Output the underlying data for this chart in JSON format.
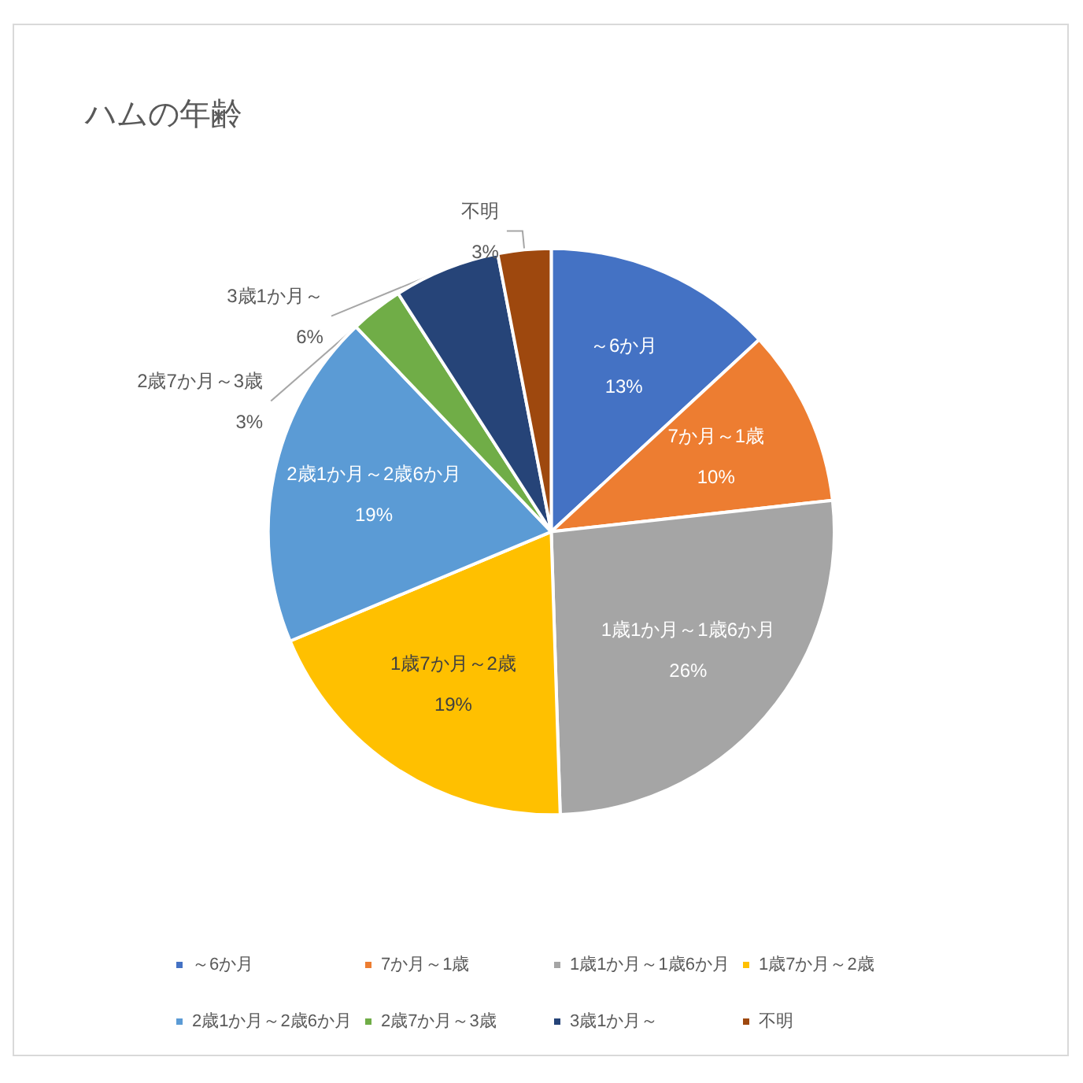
{
  "chart_data": {
    "type": "pie",
    "title": "ハムの年齢",
    "categories": [
      "～6か月",
      "7か月～1歳",
      "1歳1か月～1歳6か月",
      "1歳7か月～2歳",
      "2歳1か月～2歳6か月",
      "2歳7か月～3歳",
      "3歳1か月～",
      "不明"
    ],
    "values": [
      13,
      10,
      26,
      19,
      19,
      3,
      6,
      3
    ],
    "colors": [
      "#4472c4",
      "#ed7d31",
      "#a5a5a5",
      "#ffc000",
      "#5b9bd5",
      "#70ad47",
      "#264478",
      "#9e480e"
    ],
    "value_labels": [
      "13%",
      "10%",
      "26%",
      "19%",
      "19%",
      "3%",
      "6%",
      "3%"
    ],
    "legend": "bottom"
  }
}
